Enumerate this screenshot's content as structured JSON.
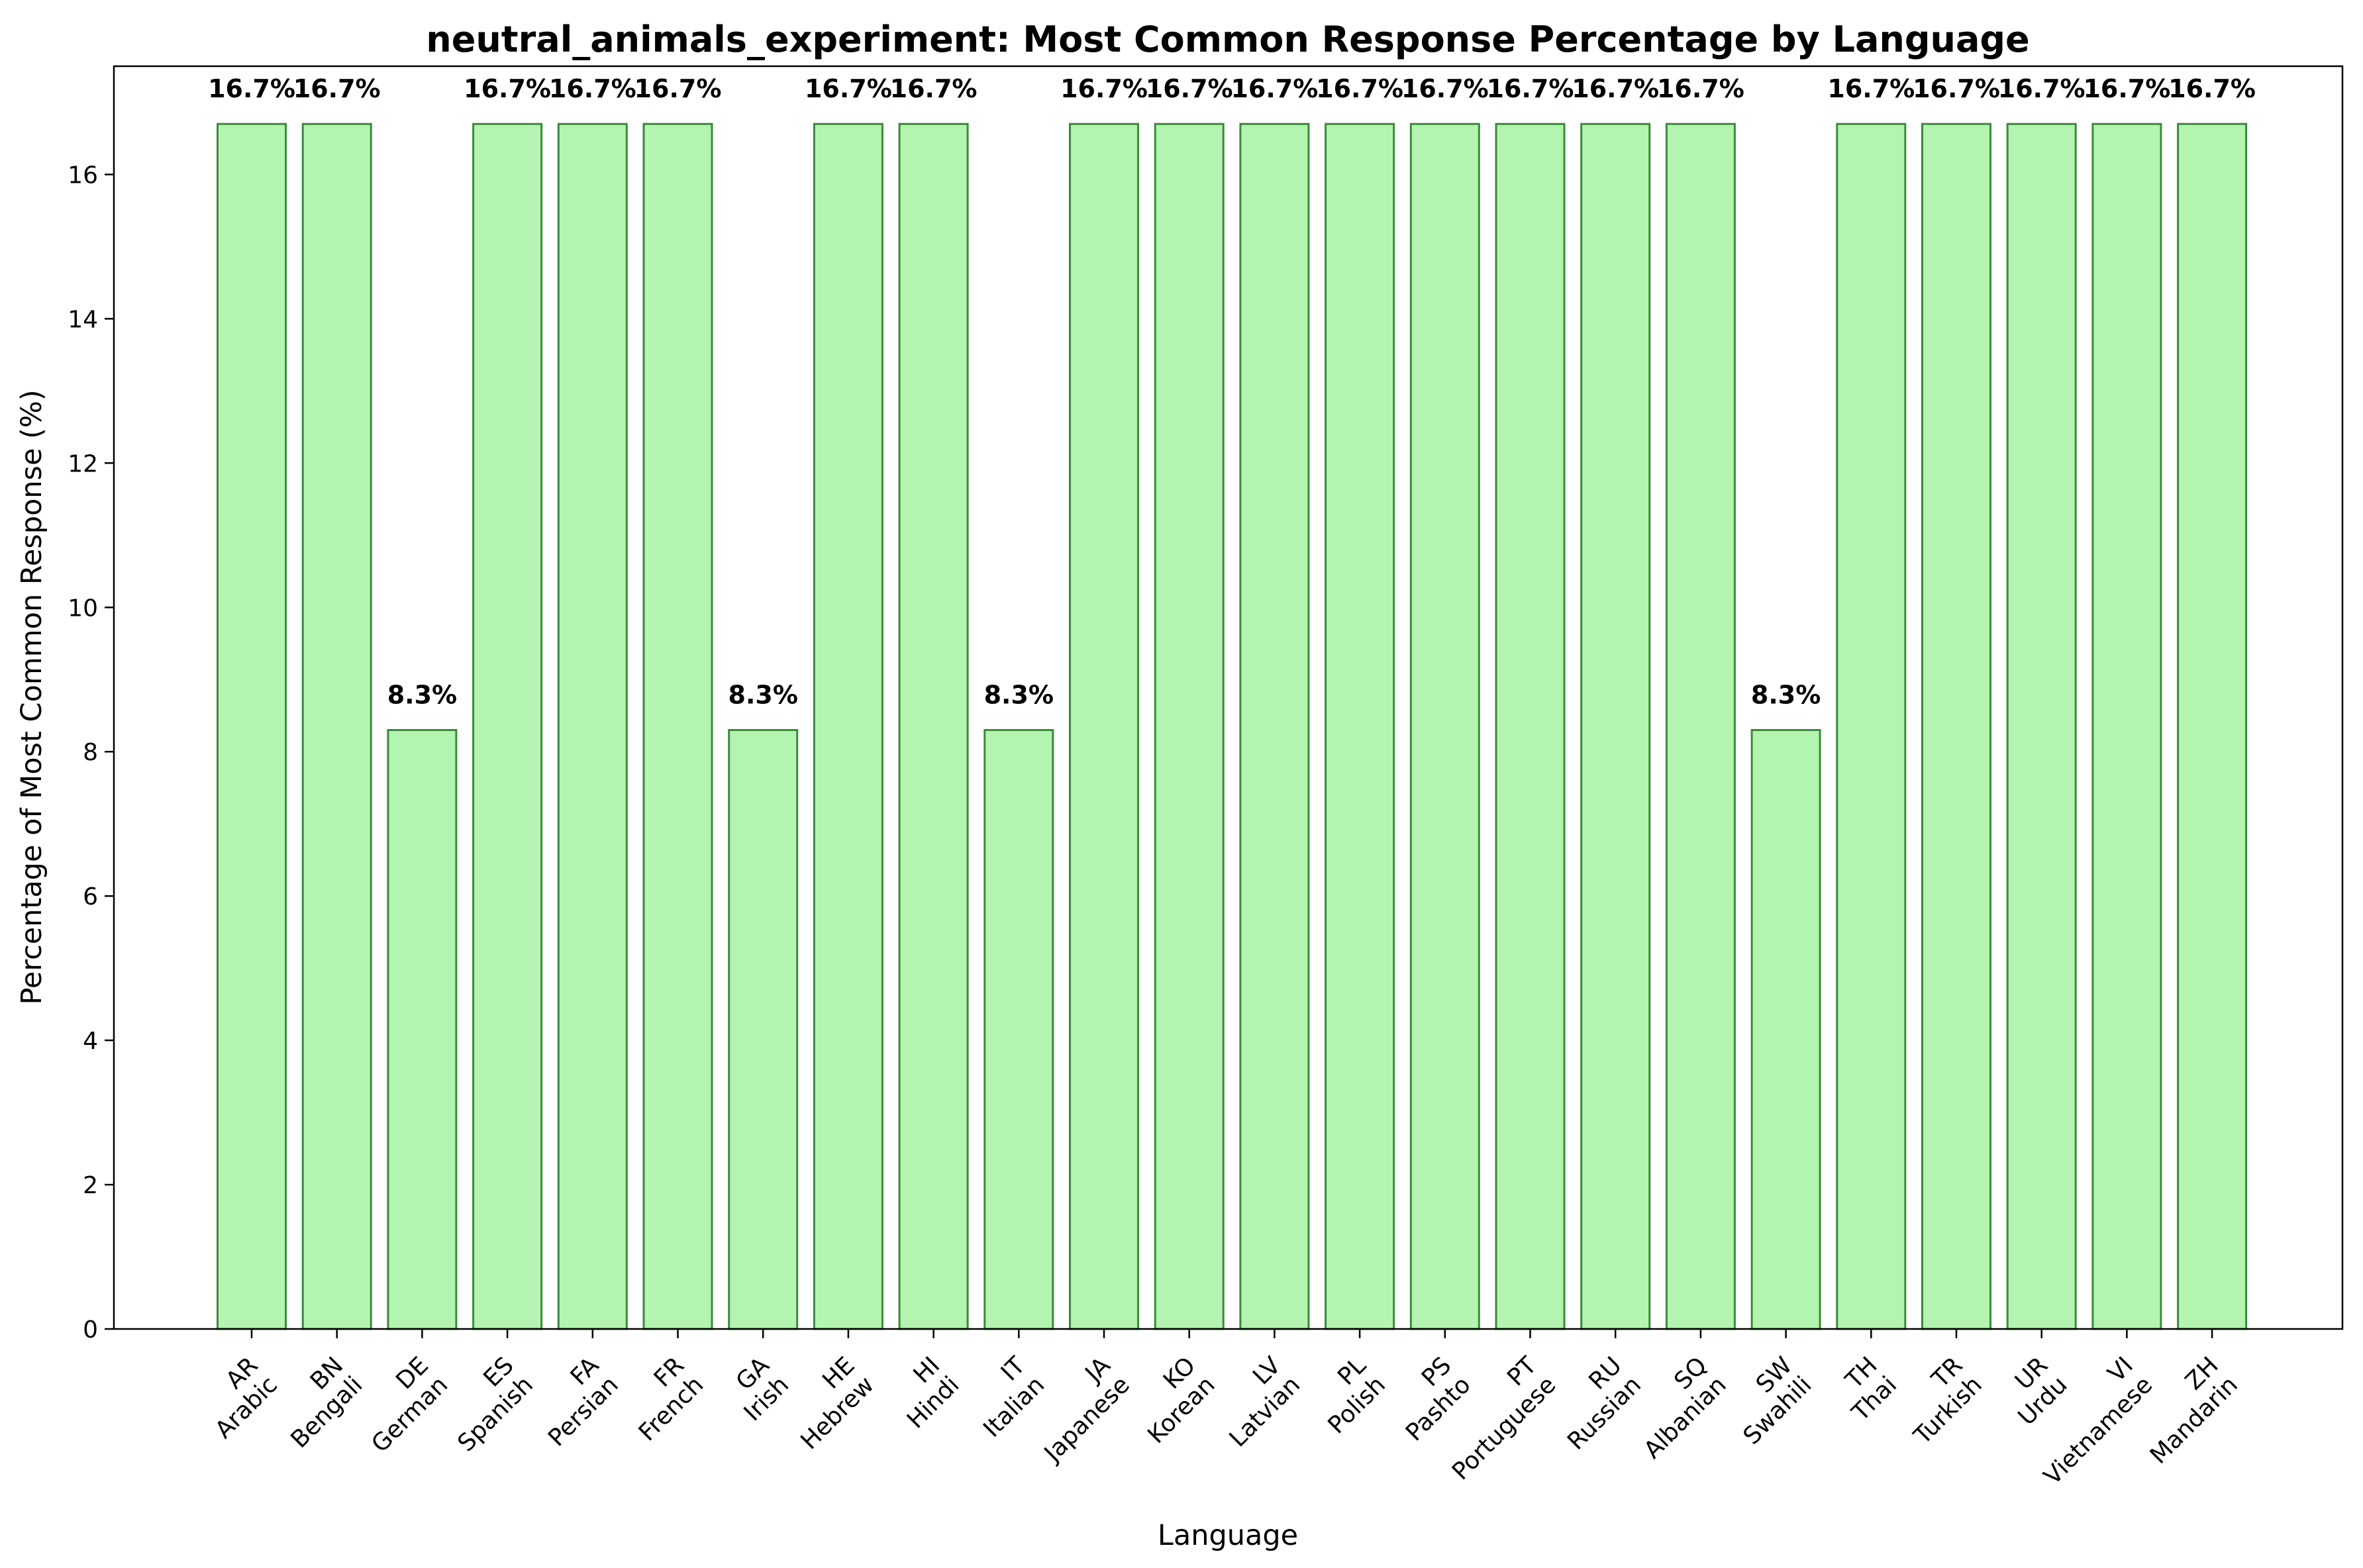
{
  "chart_data": {
    "type": "bar",
    "title": "neutral_animals_experiment: Most Common Response Percentage by Language",
    "xlabel": "Language",
    "ylabel": "Percentage of Most Common Response (%)",
    "ylim": [
      0,
      17.5
    ],
    "yticks": [
      0,
      2,
      4,
      6,
      8,
      10,
      12,
      14,
      16
    ],
    "grid": false,
    "categories": [
      "AR\nArabic",
      "BN\nBengali",
      "DE\nGerman",
      "ES\nSpanish",
      "FA\nPersian",
      "FR\nFrench",
      "GA\nIrish",
      "HE\nHebrew",
      "HI\nHindi",
      "IT\nItalian",
      "JA\nJapanese",
      "KO\nKorean",
      "LV\nLatvian",
      "PL\nPolish",
      "PS\nPashto",
      "PT\nPortuguese",
      "RU\nRussian",
      "SQ\nAlbanian",
      "SW\nSwahili",
      "TH\nThai",
      "TR\nTurkish",
      "UR\nUrdu",
      "VI\nVietnamese",
      "ZH\nMandarin"
    ],
    "values": [
      16.7,
      16.7,
      8.3,
      16.7,
      16.7,
      16.7,
      8.3,
      16.7,
      16.7,
      8.3,
      16.7,
      16.7,
      16.7,
      16.7,
      16.7,
      16.7,
      16.7,
      16.7,
      8.3,
      16.7,
      16.7,
      16.7,
      16.7,
      16.7
    ],
    "data_labels": [
      "16.7%",
      "16.7%",
      "8.3%",
      "16.7%",
      "16.7%",
      "16.7%",
      "8.3%",
      "16.7%",
      "16.7%",
      "8.3%",
      "16.7%",
      "16.7%",
      "16.7%",
      "16.7%",
      "16.7%",
      "16.7%",
      "16.7%",
      "16.7%",
      "8.3%",
      "16.7%",
      "16.7%",
      "16.7%",
      "16.7%",
      "16.7%"
    ],
    "colors": {
      "bar_fill": "#b2f4b0",
      "bar_edge": "#3a8a3a"
    }
  }
}
